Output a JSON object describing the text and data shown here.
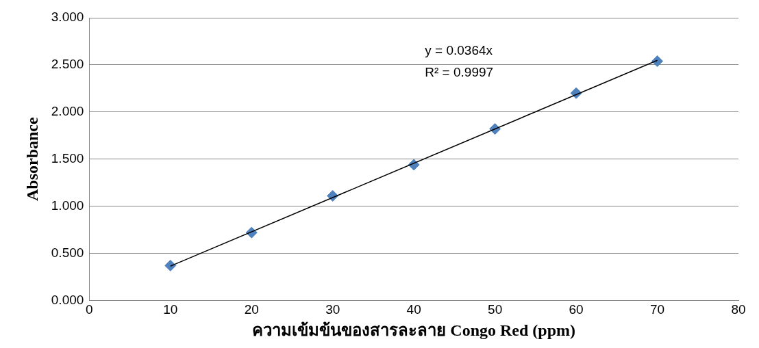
{
  "chart_data": {
    "type": "scatter",
    "xlabel": "ความเข้มข้นของสารละลาย Congo Red (ppm)",
    "ylabel": "Absorbance",
    "x": [
      10,
      20,
      30,
      40,
      50,
      60,
      70
    ],
    "series": [
      {
        "color": "#4f81bd",
        "marker": "diamond",
        "values": [
          0.37,
          0.72,
          1.11,
          1.44,
          1.82,
          2.2,
          2.54
        ]
      },
      {
        "type": "line",
        "color": "#000000",
        "marker": "none",
        "x": [
          10,
          70
        ],
        "values": [
          0.364,
          2.548
        ]
      }
    ],
    "xlim": [
      0,
      80
    ],
    "xticks": [
      0,
      10,
      20,
      30,
      40,
      50,
      60,
      70,
      80
    ],
    "ylim": [
      0,
      3
    ],
    "yticks": [
      {
        "value": 0,
        "label": "0.000"
      },
      {
        "value": 0.5,
        "label": "0.500"
      },
      {
        "value": 1,
        "label": "1.000"
      },
      {
        "value": 1.5,
        "label": "1.500"
      },
      {
        "value": 2,
        "label": "2.000"
      },
      {
        "value": 2.5,
        "label": "2.500"
      },
      {
        "value": 3,
        "label": "3.000"
      }
    ],
    "grid": "y",
    "legend": false,
    "annotations": [
      "y = 0.0364x",
      "R² = 0.9997"
    ]
  }
}
